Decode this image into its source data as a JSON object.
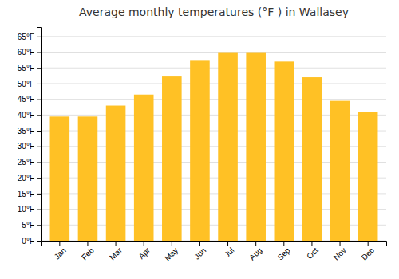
{
  "chart_data": {
    "type": "bar",
    "title": "Average monthly temperatures (°F ) in Wallasey",
    "categories": [
      "Jan",
      "Feb",
      "Mar",
      "Apr",
      "May",
      "Jun",
      "Jul",
      "Aug",
      "Sep",
      "Oct",
      "Nov",
      "Dec"
    ],
    "values": [
      39.5,
      39.5,
      43.0,
      46.5,
      52.5,
      57.5,
      60.0,
      60.0,
      57.0,
      52.0,
      44.5,
      41.0
    ],
    "color": "#FFC125",
    "ylim": [
      0,
      68
    ],
    "yticks": [
      {
        "value": 0,
        "label": "0°F"
      },
      {
        "value": 5,
        "label": "5°F"
      },
      {
        "value": 10,
        "label": "10°F"
      },
      {
        "value": 15,
        "label": "15°F"
      },
      {
        "value": 20,
        "label": "20°F"
      },
      {
        "value": 25,
        "label": "25°F"
      },
      {
        "value": 30,
        "label": "30°F"
      },
      {
        "value": 35,
        "label": "35°F"
      },
      {
        "value": 40,
        "label": "40°F"
      },
      {
        "value": 45,
        "label": "45°F"
      },
      {
        "value": 50,
        "label": "50°F"
      },
      {
        "value": 55,
        "label": "55°F"
      },
      {
        "value": 60,
        "label": "60°F"
      },
      {
        "value": 65,
        "label": "65°F"
      }
    ],
    "grid": true
  }
}
